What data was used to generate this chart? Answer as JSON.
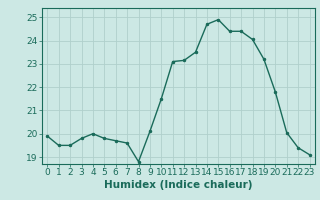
{
  "x": [
    0,
    1,
    2,
    3,
    4,
    5,
    6,
    7,
    8,
    9,
    10,
    11,
    12,
    13,
    14,
    15,
    16,
    17,
    18,
    19,
    20,
    21,
    22,
    23
  ],
  "y": [
    19.9,
    19.5,
    19.5,
    19.8,
    20.0,
    19.8,
    19.7,
    19.6,
    18.8,
    20.1,
    21.5,
    23.1,
    23.15,
    23.5,
    24.7,
    24.9,
    24.4,
    24.4,
    24.05,
    23.2,
    21.8,
    20.05,
    19.4,
    19.1
  ],
  "line_color": "#1a6b5a",
  "marker_color": "#1a6b5a",
  "bg_color": "#cce8e4",
  "grid_color": "#b0d0cc",
  "xlabel": "Humidex (Indice chaleur)",
  "xlim": [
    -0.5,
    23.5
  ],
  "ylim": [
    18.7,
    25.4
  ],
  "yticks": [
    19,
    20,
    21,
    22,
    23,
    24,
    25
  ],
  "xticks": [
    0,
    1,
    2,
    3,
    4,
    5,
    6,
    7,
    8,
    9,
    10,
    11,
    12,
    13,
    14,
    15,
    16,
    17,
    18,
    19,
    20,
    21,
    22,
    23
  ],
  "tick_color": "#1a6b5a",
  "label_color": "#1a6b5a",
  "font_size_axis": 6.5,
  "font_size_label": 7.5
}
